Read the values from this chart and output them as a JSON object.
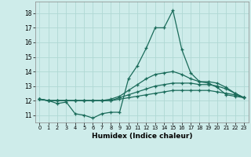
{
  "xlabel": "Humidex (Indice chaleur)",
  "background_color": "#ceecea",
  "grid_color": "#b0d8d4",
  "line_color": "#1a6b5a",
  "xlim": [
    -0.5,
    23.5
  ],
  "ylim": [
    10.5,
    18.8
  ],
  "yticks": [
    11,
    12,
    13,
    14,
    15,
    16,
    17,
    18
  ],
  "xticks": [
    0,
    1,
    2,
    3,
    4,
    5,
    6,
    7,
    8,
    9,
    10,
    11,
    12,
    13,
    14,
    15,
    16,
    17,
    18,
    19,
    20,
    21,
    22,
    23
  ],
  "series": [
    [
      12.1,
      12.0,
      11.8,
      11.9,
      11.1,
      11.0,
      10.8,
      11.1,
      11.2,
      11.2,
      13.5,
      14.4,
      15.6,
      17.0,
      17.0,
      18.2,
      15.5,
      13.9,
      13.3,
      13.2,
      12.9,
      12.4,
      12.3,
      12.2
    ],
    [
      12.1,
      12.0,
      12.0,
      12.0,
      12.0,
      12.0,
      12.0,
      12.0,
      12.0,
      12.1,
      12.2,
      12.3,
      12.4,
      12.5,
      12.6,
      12.7,
      12.7,
      12.7,
      12.7,
      12.7,
      12.6,
      12.5,
      12.4,
      12.2
    ],
    [
      12.1,
      12.0,
      12.0,
      12.0,
      12.0,
      12.0,
      12.0,
      12.0,
      12.0,
      12.2,
      12.4,
      12.6,
      12.8,
      13.0,
      13.1,
      13.2,
      13.2,
      13.2,
      13.1,
      13.1,
      13.0,
      12.8,
      12.5,
      12.2
    ],
    [
      12.1,
      12.0,
      12.0,
      12.0,
      12.0,
      12.0,
      12.0,
      12.0,
      12.1,
      12.3,
      12.7,
      13.1,
      13.5,
      13.8,
      13.9,
      14.0,
      13.8,
      13.5,
      13.3,
      13.3,
      13.2,
      12.9,
      12.5,
      12.2
    ]
  ]
}
